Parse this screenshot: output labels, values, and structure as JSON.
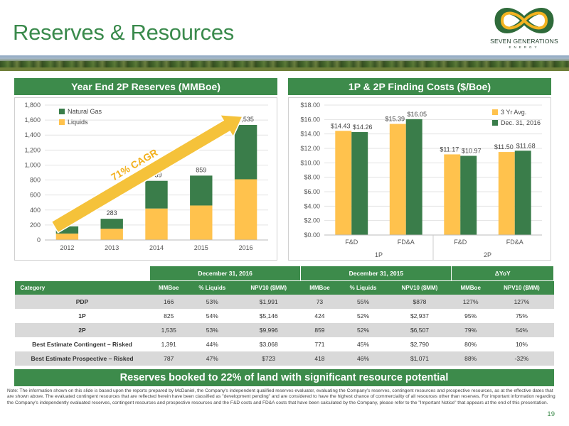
{
  "slide": {
    "title": "Reserves & Resources",
    "page_number": "19",
    "logo_name": "SEVEN GENERATIONS",
    "logo_sub": "ENERGY",
    "bottom_banner": "Reserves booked to 22% of land with significant resource potential",
    "note": "Note: The information shown on this slide is based upon the reports prepared by McDaniel, the Company's independent qualified reserves evaluator, evaluating the Company's reserves, contingent resources and prospective resources, as at the effective dates that are shown above. The evaluated contingent resources that are reflected herein have been classified as \"development pending\" and are considered to have the highest chance of commerciality of all resources other than reserves. For important information regarding the Company's independently evaluated reserves, contingent resources and prospective resources and the F&D costs and FD&A costs that have been calculated by the Company, please refer to the \"Important Notice\" that appears at the end of this presentation."
  },
  "colors": {
    "green": "#3d8b4b",
    "dark_green": "#3a7d4a",
    "gold": "#ffc24d",
    "title_green": "#3a8a4c"
  },
  "chart_data": [
    {
      "type": "bar",
      "stacked": true,
      "title": "Year End 2P Reserves (MMBoe)",
      "categories": [
        "2012",
        "2013",
        "2014",
        "2015",
        "2016"
      ],
      "series": [
        {
          "name": "Liquids",
          "color": "#ffc24d",
          "values": [
            86,
            150,
            420,
            460,
            810
          ]
        },
        {
          "name": "Natural Gas",
          "color": "#3a7d4a",
          "values": [
            96,
            133,
            369,
            399,
            725
          ]
        }
      ],
      "totals": [
        182,
        283,
        789,
        859,
        1535
      ],
      "total_labels": [
        "182",
        "283",
        "789",
        "859",
        "1,535"
      ],
      "ylim": [
        0,
        1800
      ],
      "yticks": [
        "0",
        "200",
        "400",
        "600",
        "800",
        "1,000",
        "1,200",
        "1,400",
        "1,600",
        "1,800"
      ],
      "legend": [
        "Natural Gas",
        "Liquids"
      ],
      "legend_position": "top-left",
      "annotation": "71% CAGR"
    },
    {
      "type": "bar",
      "title": "1P & 2P Finding Costs ($/Boe)",
      "categories": [
        "F&D",
        "FD&A",
        "F&D",
        "FD&A"
      ],
      "groups": [
        "1P",
        "2P"
      ],
      "series": [
        {
          "name": "3 Yr Avg.",
          "color": "#ffc24d",
          "values": [
            14.43,
            15.39,
            11.17,
            11.5
          ],
          "labels": [
            "$14.43",
            "$15.39",
            "$11.17",
            "$11.50"
          ]
        },
        {
          "name": "Dec. 31, 2016",
          "color": "#3a7d4a",
          "values": [
            14.26,
            16.05,
            10.97,
            11.68
          ],
          "labels": [
            "$14.26",
            "$16.05",
            "$10.97",
            "$11.68"
          ]
        }
      ],
      "ylim": [
        0,
        18
      ],
      "yticks": [
        "$0.00",
        "$2.00",
        "$4.00",
        "$6.00",
        "$8.00",
        "$10.00",
        "$12.00",
        "$14.00",
        "$16.00",
        "$18.00"
      ],
      "legend_position": "top-right"
    }
  ],
  "table": {
    "groups": [
      "December 31, 2016",
      "December 31, 2015",
      "ΔYoY"
    ],
    "columns": [
      "Category",
      "MMBoe",
      "% Liquids",
      "NPV10 ($MM)",
      "MMBoe",
      "% Liquids",
      "NPV10 ($MM)",
      "MMBoe",
      "NPV10 ($MM)"
    ],
    "rows": [
      [
        "PDP",
        "166",
        "53%",
        "$1,991",
        "73",
        "55%",
        "$878",
        "127%",
        "127%"
      ],
      [
        "1P",
        "825",
        "54%",
        "$5,146",
        "424",
        "52%",
        "$2,937",
        "95%",
        "75%"
      ],
      [
        "2P",
        "1,535",
        "53%",
        "$9,996",
        "859",
        "52%",
        "$6,507",
        "79%",
        "54%"
      ],
      [
        "Best Estimate Contingent – Risked",
        "1,391",
        "44%",
        "$3,068",
        "771",
        "45%",
        "$2,790",
        "80%",
        "10%"
      ],
      [
        "Best Estimate Prospective – Risked",
        "787",
        "47%",
        "$723",
        "418",
        "46%",
        "$1,071",
        "88%",
        "-32%"
      ]
    ]
  }
}
